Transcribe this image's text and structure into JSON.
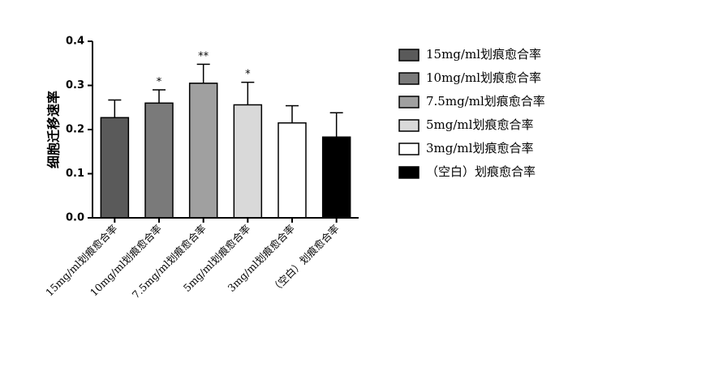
{
  "chart_data": {
    "type": "bar",
    "title": "",
    "xlabel": "",
    "ylabel": "细胞迁移速率",
    "ylim": [
      0,
      0.4
    ],
    "yticks": [
      "0.0",
      "0.1",
      "0.2",
      "0.3",
      "0.4"
    ],
    "categories": [
      "15mg/ml划痕愈合率",
      "10mg/ml划痕愈合率",
      "7.5mg/ml划痕愈合率",
      "5mg/ml划痕愈合率",
      "3mg/ml划痕愈合率",
      "（空白）划痕愈合率"
    ],
    "values": [
      0.227,
      0.26,
      0.305,
      0.256,
      0.215,
      0.183
    ],
    "errors": [
      0.04,
      0.03,
      0.043,
      0.051,
      0.039,
      0.055
    ],
    "significance": [
      "",
      "*",
      "**",
      "*",
      "",
      ""
    ],
    "colors": [
      "#5a5a5a",
      "#7a7a7a",
      "#a0a0a0",
      "#d9d9d9",
      "#ffffff",
      "#000000"
    ],
    "legend": {
      "position": "right",
      "entries": [
        "15mg/ml划痕愈合率",
        "10mg/ml划痕愈合率",
        "7.5mg/ml划痕愈合率",
        "5mg/ml划痕愈合率",
        "3mg/ml划痕愈合率",
        "（空白）划痕愈合率"
      ]
    },
    "grid": false
  }
}
